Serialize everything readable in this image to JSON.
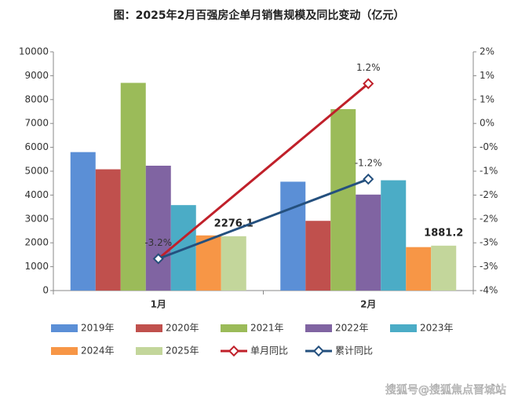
{
  "chart_data": {
    "type": "bar",
    "title": "图：2025年2月百强房企单月销售规模及同比变动（亿元）",
    "categories": [
      "1月",
      "2月"
    ],
    "series": [
      {
        "name": "2019年",
        "color": "#5b8fd6",
        "values": [
          5800,
          4560
        ]
      },
      {
        "name": "2020年",
        "color": "#c0504d",
        "values": [
          5080,
          2920
        ]
      },
      {
        "name": "2021年",
        "color": "#9bbb59",
        "values": [
          8700,
          7600
        ]
      },
      {
        "name": "2022年",
        "color": "#8064a2",
        "values": [
          5230,
          4020
        ]
      },
      {
        "name": "2023年",
        "color": "#4bacc6",
        "values": [
          3580,
          4620
        ]
      },
      {
        "name": "2024年",
        "color": "#f79646",
        "values": [
          2310,
          1820
        ]
      },
      {
        "name": "2025年",
        "color": "#c3d69b",
        "values": [
          2276.1,
          1881.2
        ],
        "value_labels": [
          "2276.1",
          "1881.2"
        ]
      },
      {
        "name": "单月同比",
        "type": "line",
        "axis": "y2",
        "color": "#c0202a",
        "values": [
          -3.2,
          1.2
        ],
        "value_labels": [
          "-3.2%",
          "1.2%"
        ]
      },
      {
        "name": "累计同比",
        "type": "line",
        "axis": "y2",
        "color": "#24507e",
        "values": [
          -3.2,
          -1.2
        ],
        "value_labels": [
          null,
          "-1.2%"
        ]
      }
    ],
    "ylim": [
      0,
      10000
    ],
    "yticks": [
      0,
      1000,
      2000,
      3000,
      4000,
      5000,
      6000,
      7000,
      8000,
      9000,
      10000
    ],
    "y2lim": [
      -4,
      2
    ],
    "y2ticks": [
      {
        "value": -4,
        "label": "-4%"
      },
      {
        "value": -3.4,
        "label": "-3%"
      },
      {
        "value": -2.8,
        "label": "-3%"
      },
      {
        "value": -2.2,
        "label": "-2%"
      },
      {
        "value": -1.6,
        "label": "-2%"
      },
      {
        "value": -1,
        "label": "-1%"
      },
      {
        "value": -0.4,
        "label": "-0%"
      },
      {
        "value": 0.2,
        "label": "0%"
      },
      {
        "value": 0.8,
        "label": "1%"
      },
      {
        "value": 1.4,
        "label": "1%"
      },
      {
        "value": 2,
        "label": "2%"
      }
    ],
    "grid": false
  },
  "watermark": "搜狐号@搜狐焦点晋城站"
}
